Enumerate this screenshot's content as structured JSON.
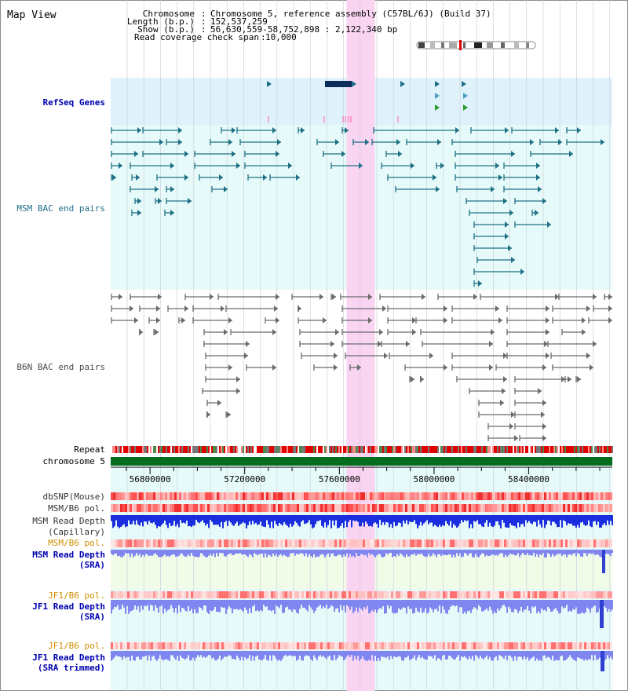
{
  "title": "Map View",
  "info": {
    "chromosome_label": "Chromosome",
    "chromosome_value": "Chromosome 5, reference assembly (C57BL/6J) (Build 37)",
    "length_label": "Length (b.p.)",
    "length_value": "152,537,259",
    "show_label": "Show (b.p.)",
    "show_value": "56,630,559-58,752,898 : 2,122,340 bp",
    "span_label": "Read coverage check span",
    "span_value": "10,000"
  },
  "axis": {
    "start": 56630559,
    "end": 58752898,
    "ticks": [
      "56800000",
      "57200000",
      "57600000",
      "58000000",
      "58400000"
    ]
  },
  "highlight_region": [
    57630000,
    57750000
  ],
  "tracks": {
    "refseq": "RefSeq Genes",
    "msm_bac": "MSM BAC end pairs",
    "b6n_bac": "B6N BAC end pairs",
    "repeat": "Repeat",
    "chromosome": "chromosome 5",
    "dbsnp": "dbSNP(Mouse)",
    "msm_b6_pol": "MSM/B6 pol.",
    "msm_depth_cap_1": "MSM Read Depth",
    "msm_depth_cap_2": "(Capillary)",
    "msm_b6_pol_sra": "MSM/B6 pol.",
    "msm_depth_sra_1": "MSM Read Depth",
    "msm_depth_sra_2": "(SRA)",
    "jf1_pol": "JF1/B6 pol.",
    "jf1_depth_1": "JF1 Read Depth",
    "jf1_depth_2": "(SRA)",
    "jf1_pol_trim": "JF1/B6 pol.",
    "jf1_trim_1": "JF1 Read Depth",
    "jf1_trim_2": "(SRA trimmed)"
  },
  "colors": {
    "refseq_bg": "#dff2fb",
    "msm_bac_bg": "#e6fbf9",
    "lower_bg": "#e6fbf9",
    "sra_bg": "#f0fbe8",
    "highlight": "#f9d5f2",
    "msm_feature": "#1f6f86",
    "b6n_feature": "#6b6b6b",
    "chromosome_bar": "#006d1f",
    "depth_dark_blue": "#1a2ee0",
    "depth_light_blue": "#7f86f0",
    "label_blue": "#0000b0",
    "label_teal": "#1f6f86",
    "label_gray": "#4a4a4a",
    "label_orange": "#d09000"
  }
}
